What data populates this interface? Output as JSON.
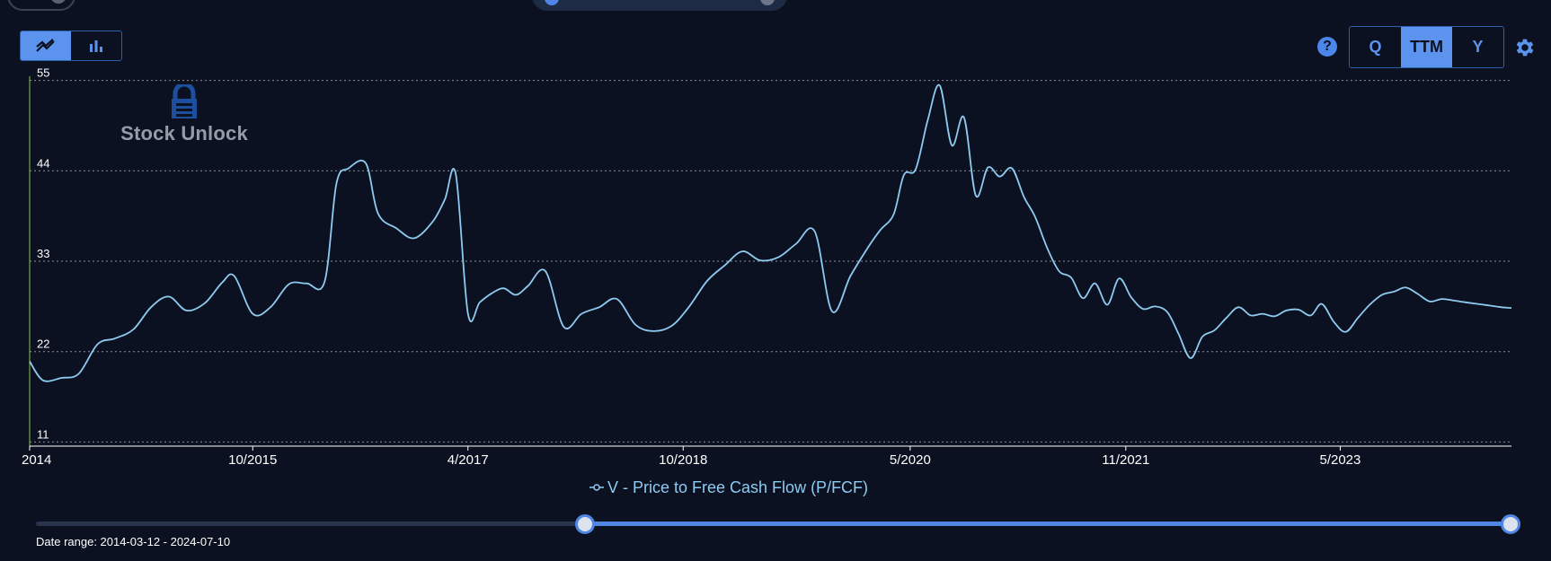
{
  "header": {
    "chart_type_options": [
      {
        "icon": "line-chart-icon",
        "active": true
      },
      {
        "icon": "bar-chart-icon",
        "active": false
      }
    ],
    "help_label": "?",
    "period_options": [
      {
        "label": "Q",
        "active": false
      },
      {
        "label": "TTM",
        "active": true
      },
      {
        "label": "Y",
        "active": false
      }
    ],
    "settings_icon": "gear-icon"
  },
  "watermark": {
    "text": "Stock Unlock",
    "icon": "lock-logo-icon"
  },
  "legend": {
    "label": "V - Price to Free Cash Flow (P/FCF)",
    "icon": "line-marker-icon"
  },
  "slider": {
    "date_range": "Date range: 2014-03-12 - 2024-07-10",
    "start_fraction": 0.37,
    "end_fraction": 1.0
  },
  "colors": {
    "background": "#0b1120",
    "line": "#8ecbf0",
    "accent": "#5b93ef",
    "y_axis": "#8bc34a",
    "grid": "#8a8f99"
  },
  "chart_data": {
    "type": "line",
    "title": "",
    "xlabel": "",
    "ylabel": "",
    "x_tick_labels": [
      "2014",
      "10/2015",
      "4/2017",
      "10/2018",
      "5/2020",
      "11/2021",
      "5/2023"
    ],
    "x_tick_dates": [
      "2014-03-12",
      "2015-10-01",
      "2017-04-01",
      "2018-10-01",
      "2020-05-01",
      "2021-11-01",
      "2023-05-01"
    ],
    "xlim": [
      "2014-03-12",
      "2024-07-10"
    ],
    "y_ticks": [
      11,
      22,
      33,
      44,
      55
    ],
    "ylim": [
      10.5,
      55.5
    ],
    "grid": true,
    "legend": "bottom-center",
    "series": [
      {
        "name": "V - Price to Free Cash Flow (P/FCF)",
        "x": [
          "2014-03-12",
          "2014-04-15",
          "2014-06-01",
          "2014-07-15",
          "2014-09-01",
          "2014-10-15",
          "2014-12-01",
          "2015-01-15",
          "2015-03-01",
          "2015-04-15",
          "2015-06-01",
          "2015-07-15",
          "2015-08-15",
          "2015-10-01",
          "2015-11-15",
          "2016-01-01",
          "2016-02-15",
          "2016-04-01",
          "2016-05-01",
          "2016-06-01",
          "2016-07-15",
          "2016-08-15",
          "2016-10-01",
          "2016-11-15",
          "2017-01-01",
          "2017-02-01",
          "2017-03-01",
          "2017-04-01",
          "2017-05-01",
          "2017-06-01",
          "2017-07-01",
          "2017-08-01",
          "2017-09-01",
          "2017-10-15",
          "2017-12-01",
          "2018-01-15",
          "2018-03-01",
          "2018-04-15",
          "2018-06-01",
          "2018-07-15",
          "2018-09-01",
          "2018-10-15",
          "2018-12-01",
          "2019-01-15",
          "2019-03-01",
          "2019-04-15",
          "2019-06-01",
          "2019-07-15",
          "2019-09-01",
          "2019-10-15",
          "2019-12-01",
          "2020-01-15",
          "2020-02-15",
          "2020-03-20",
          "2020-04-15",
          "2020-05-15",
          "2020-06-15",
          "2020-07-15",
          "2020-08-15",
          "2020-09-15",
          "2020-10-15",
          "2020-11-15",
          "2020-12-15",
          "2021-01-15",
          "2021-02-15",
          "2021-03-15",
          "2021-04-15",
          "2021-05-15",
          "2021-06-15",
          "2021-07-15",
          "2021-08-15",
          "2021-09-15",
          "2021-10-15",
          "2021-11-15",
          "2021-12-15",
          "2022-01-15",
          "2022-02-15",
          "2022-03-15",
          "2022-04-15",
          "2022-05-15",
          "2022-06-15",
          "2022-07-15",
          "2022-08-15",
          "2022-09-15",
          "2022-10-15",
          "2022-11-15",
          "2022-12-15",
          "2023-01-15",
          "2023-02-15",
          "2023-03-15",
          "2023-04-15",
          "2023-05-15",
          "2023-06-15",
          "2023-07-15",
          "2023-08-15",
          "2023-09-15",
          "2023-10-15",
          "2023-11-15",
          "2023-12-15",
          "2024-01-15",
          "2024-02-15",
          "2024-03-15",
          "2024-04-15",
          "2024-05-15",
          "2024-06-15",
          "2024-07-10"
        ],
        "y": [
          20.8,
          18.5,
          18.8,
          19.3,
          22.9,
          23.6,
          24.7,
          27.4,
          28.7,
          27.0,
          27.9,
          30.4,
          31.2,
          26.6,
          27.4,
          30.2,
          30.3,
          30.5,
          42.4,
          44.3,
          44.9,
          38.8,
          37.0,
          35.8,
          37.8,
          40.5,
          43.6,
          26.6,
          28.0,
          29.1,
          29.7,
          28.9,
          30.0,
          31.8,
          25.0,
          26.6,
          27.4,
          28.4,
          25.3,
          24.5,
          25.1,
          27.4,
          30.6,
          32.5,
          34.2,
          33.1,
          33.5,
          35.1,
          36.6,
          26.9,
          31.2,
          34.7,
          36.8,
          38.7,
          43.5,
          44.2,
          50.2,
          54.4,
          47.1,
          50.5,
          41.0,
          44.4,
          43.3,
          44.3,
          40.8,
          38.4,
          34.6,
          31.8,
          31.0,
          28.5,
          30.3,
          27.7,
          30.9,
          28.6,
          27.2,
          27.5,
          26.8,
          24.2,
          21.2,
          23.8,
          24.6,
          26.1,
          27.4,
          26.4,
          26.6,
          26.3,
          27.0,
          27.1,
          26.4,
          27.8,
          25.6,
          24.4,
          26.1,
          27.7,
          28.9,
          29.3,
          29.8,
          29.0,
          28.1,
          28.4,
          28.2,
          28.0,
          27.8,
          27.6,
          27.4,
          27.3
        ]
      }
    ]
  }
}
